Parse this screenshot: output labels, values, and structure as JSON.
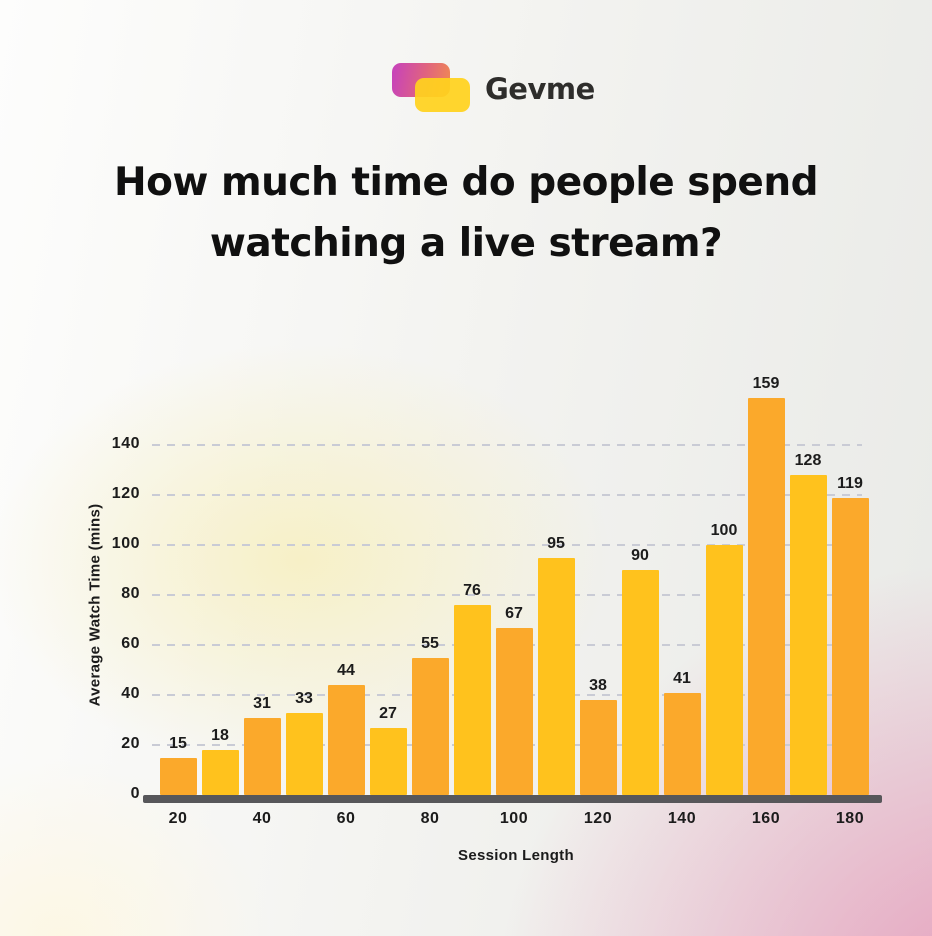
{
  "logo": {
    "text": "Gevme"
  },
  "title": {
    "line1": "How much time do people spend",
    "line2": "watching a live stream?"
  },
  "chart_data": {
    "type": "bar",
    "title": "How much time do people spend watching a live stream?",
    "categories": [
      20,
      30,
      40,
      50,
      60,
      70,
      80,
      90,
      100,
      110,
      120,
      130,
      140,
      150,
      160,
      170,
      180
    ],
    "values": [
      15,
      18,
      31,
      33,
      44,
      27,
      55,
      76,
      67,
      95,
      38,
      90,
      41,
      100,
      159,
      128,
      119
    ],
    "xlabel": "Session Length",
    "ylabel": "Average Watch Time (mins)",
    "x_tick_labels": [
      "20",
      "40",
      "60",
      "80",
      "100",
      "120",
      "140",
      "160",
      "180"
    ],
    "y_ticks": [
      0,
      20,
      40,
      60,
      80,
      100,
      120,
      140
    ],
    "ylim": [
      0,
      160
    ],
    "grid": "horizontal-dashed",
    "legend": "none",
    "value_labels_shown": true,
    "bar_color_odd": "#FBA92B",
    "bar_color_even": "#FFC21D"
  },
  "colors": {
    "background_top_left": "#FDFDFC",
    "background_top_right": "#E9EAE7",
    "background_center_yellow": "#F7F0C4",
    "background_bottom_left": "#FDF7E3",
    "background_bottom_right": "#E7A6BC",
    "gridline": "#C9CBD5",
    "axis_baseline": "#57575A",
    "text": "#1B1B1B",
    "logo_gradient_left": "#C844B8",
    "logo_gradient_right": "#F08A52",
    "logo_front_fill": "#FFD21E"
  }
}
